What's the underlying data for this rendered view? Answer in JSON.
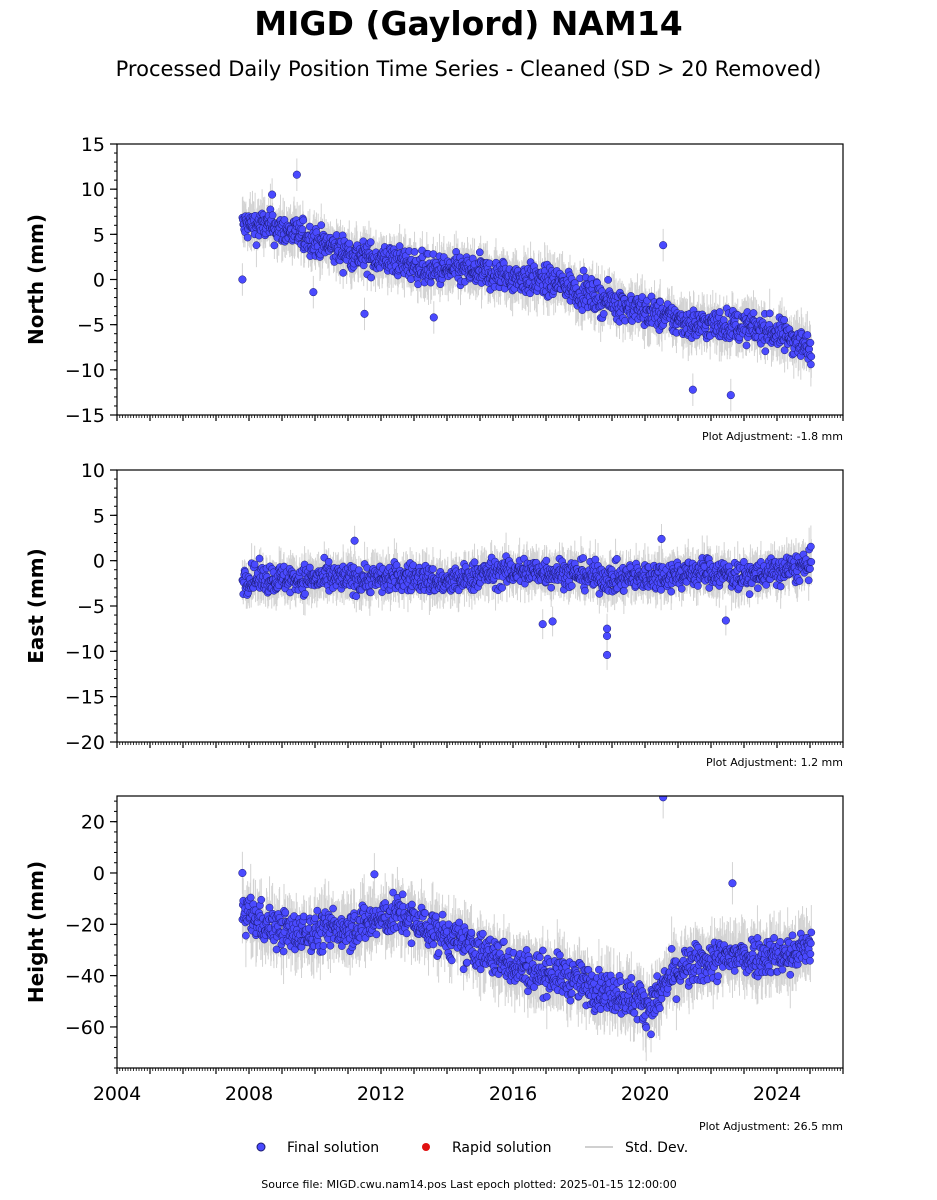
{
  "header": {
    "title": "MIGD (Gaylord) NAM14",
    "subtitle": "Processed Daily Position Time Series - Cleaned (SD > 20 Removed)"
  },
  "legend": {
    "final": "Final solution",
    "rapid": "Rapid solution",
    "std": "Std. Dev."
  },
  "footer": {
    "source": "Source file: MIGD.cwu.nam14.pos  Last epoch plotted: 2025-01-15 12:00:00"
  },
  "colors": {
    "final": "#4a4aff",
    "rapid": "#e01010",
    "std": "#b0b0b0"
  },
  "chart_data": [
    {
      "type": "scatter",
      "ylabel": "North (mm)",
      "adjustment": "Plot Adjustment: -1.8 mm",
      "xlim": [
        2004,
        2026
      ],
      "ylim": [
        -15,
        15
      ],
      "yticks": [
        -15,
        -10,
        -5,
        0,
        5,
        10,
        15
      ],
      "series": [
        {
          "name": "Final solution",
          "x": [
            2007.8,
            2008.5,
            2009.5,
            2010.5,
            2011.5,
            2012.5,
            2013.5,
            2014.5,
            2015.5,
            2016.5,
            2017.5,
            2018.5,
            2019.5,
            2020.5,
            2021.5,
            2022.5,
            2023.5,
            2024.5,
            2025.04
          ],
          "y": [
            6,
            6,
            5,
            3.5,
            2.5,
            2,
            1,
            1,
            0.5,
            0,
            -0.5,
            -2,
            -3,
            -4,
            -5,
            -5,
            -5.5,
            -6.5,
            -8
          ]
        }
      ],
      "outliers": [
        [
          2007.8,
          0
        ],
        [
          2009.45,
          11.6
        ],
        [
          2008.7,
          9.4
        ],
        [
          2009.95,
          -1.4
        ],
        [
          2011.5,
          -3.8
        ],
        [
          2022.6,
          -12.8
        ],
        [
          2021.45,
          -12.2
        ],
        [
          2020.55,
          3.8
        ],
        [
          2013.6,
          -4.2
        ]
      ]
    },
    {
      "type": "scatter",
      "ylabel": "East (mm)",
      "adjustment": "Plot Adjustment: 1.2 mm",
      "xlim": [
        2004,
        2026
      ],
      "ylim": [
        -20,
        10
      ],
      "yticks": [
        -20,
        -15,
        -10,
        -5,
        0,
        5,
        10
      ],
      "series": [
        {
          "name": "Final solution",
          "x": [
            2007.8,
            2009,
            2010,
            2011,
            2012,
            2013,
            2014,
            2015,
            2016,
            2017,
            2018,
            2019,
            2020,
            2021,
            2022,
            2023,
            2024,
            2025.04
          ],
          "y": [
            -2,
            -2,
            -2,
            -2,
            -2,
            -1.8,
            -2.5,
            -1.5,
            -1.2,
            -1.2,
            -1.5,
            -2,
            -1.8,
            -1.5,
            -1.2,
            -1.8,
            -1.2,
            -0.5
          ]
        }
      ],
      "outliers": [
        [
          2018.85,
          -10.4
        ],
        [
          2018.85,
          -8.3
        ],
        [
          2018.85,
          -7.5
        ],
        [
          2016.9,
          -7
        ],
        [
          2017.2,
          -6.7
        ],
        [
          2022.45,
          -6.6
        ],
        [
          2011.2,
          2.2
        ],
        [
          2020.5,
          2.4
        ]
      ]
    },
    {
      "type": "scatter",
      "ylabel": "Height (mm)",
      "adjustment": "Plot Adjustment: 26.5 mm",
      "xlim": [
        2004,
        2026
      ],
      "ylim": [
        -76,
        30
      ],
      "yticks": [
        -60,
        -40,
        -20,
        0,
        20
      ],
      "series": [
        {
          "name": "Final solution",
          "x": [
            2007.8,
            2008.5,
            2009.5,
            2010.5,
            2011.5,
            2012.5,
            2013.5,
            2014.5,
            2015.5,
            2016.5,
            2017.5,
            2018.5,
            2019.5,
            2020.2,
            2020.8,
            2021.5,
            2022.5,
            2023.5,
            2024.5,
            2025.04
          ],
          "y": [
            -15,
            -20,
            -24,
            -22,
            -20,
            -16,
            -22,
            -28,
            -33,
            -38,
            -40,
            -45,
            -48,
            -52,
            -40,
            -36,
            -33,
            -32,
            -32,
            -28
          ]
        }
      ],
      "outliers": [
        [
          2020.55,
          29.5
        ],
        [
          2022.65,
          -4
        ],
        [
          2007.8,
          0
        ],
        [
          2011.8,
          -0.5
        ]
      ]
    }
  ],
  "xticks": [
    2004,
    2008,
    2012,
    2016,
    2020,
    2024
  ]
}
